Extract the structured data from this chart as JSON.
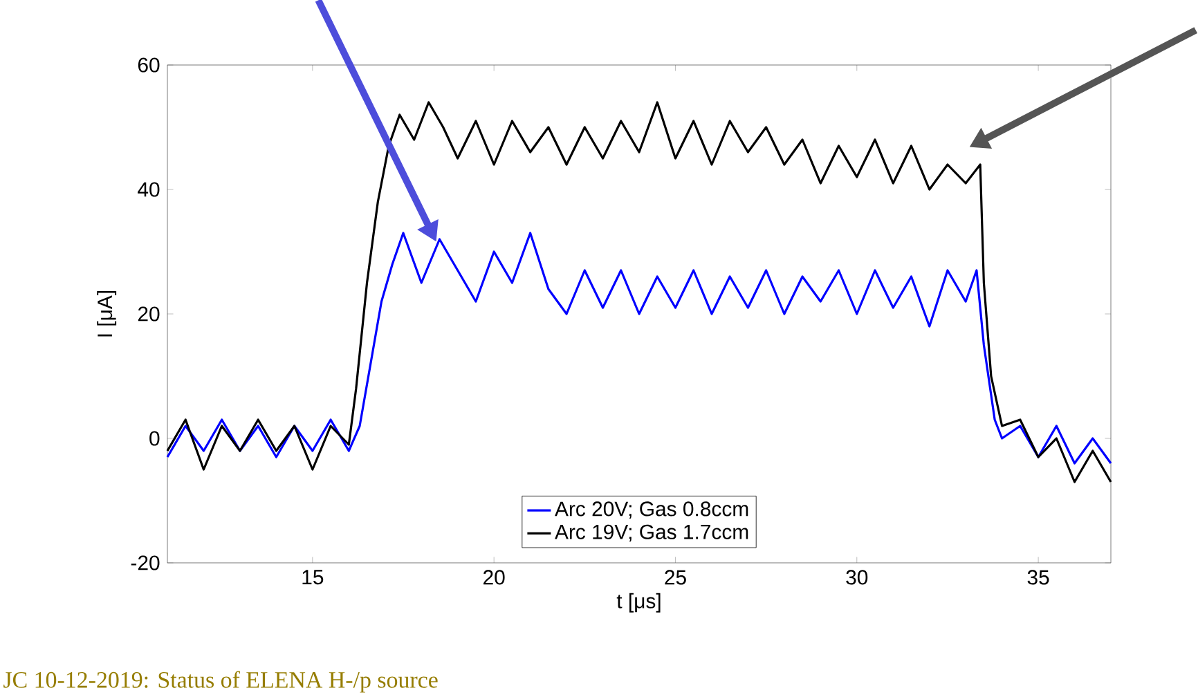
{
  "chart_data": {
    "type": "line",
    "xlabel": "t [μs]",
    "ylabel": "I [μA]",
    "xlim": [
      11,
      37
    ],
    "xticks": [
      15,
      20,
      25,
      30,
      35
    ],
    "ylim": [
      -20,
      60
    ],
    "yticks": [
      -20,
      0,
      20,
      40,
      60
    ],
    "legend": "bottom",
    "grid": false,
    "marker": "none",
    "line_style": "solid",
    "annotations": [
      "JC 10-12-2019:   Status of  ELENA H-/p source"
    ],
    "series": [
      {
        "name": "Arc 20V; Gas 0.8ccm",
        "color": "#0000ff",
        "x": [
          11,
          11.5,
          12,
          12.5,
          13,
          13.5,
          14,
          14.5,
          15,
          15.5,
          16,
          16.3,
          16.6,
          16.9,
          17.2,
          17.5,
          18,
          18.5,
          19,
          19.5,
          20,
          20.5,
          21,
          21.5,
          22,
          22.5,
          23,
          23.5,
          24,
          24.5,
          25,
          25.5,
          26,
          26.5,
          27,
          27.5,
          28,
          28.5,
          29,
          29.5,
          30,
          30.5,
          31,
          31.5,
          32,
          32.5,
          33,
          33.3,
          33.5,
          33.8,
          34,
          34.5,
          35,
          35.5,
          36,
          36.5,
          37
        ],
        "values": [
          -3,
          2,
          -2,
          3,
          -2,
          2,
          -3,
          2,
          -2,
          3,
          -2,
          2,
          12,
          22,
          28,
          33,
          25,
          32,
          27,
          22,
          30,
          25,
          33,
          24,
          20,
          27,
          21,
          27,
          20,
          26,
          21,
          27,
          20,
          26,
          21,
          27,
          20,
          26,
          22,
          27,
          20,
          27,
          21,
          26,
          18,
          27,
          22,
          27,
          15,
          3,
          0,
          2,
          -3,
          2,
          -4,
          0,
          -4
        ]
      },
      {
        "name": "Arc 19V; Gas 1.7ccm",
        "color": "#000000",
        "x": [
          11,
          11.5,
          12,
          12.5,
          13,
          13.5,
          14,
          14.5,
          15,
          15.5,
          16,
          16.2,
          16.5,
          16.8,
          17.1,
          17.4,
          17.8,
          18.2,
          18.6,
          19,
          19.5,
          20,
          20.5,
          21,
          21.5,
          22,
          22.5,
          23,
          23.5,
          24,
          24.5,
          25,
          25.5,
          26,
          26.5,
          27,
          27.5,
          28,
          28.5,
          29,
          29.5,
          30,
          30.5,
          31,
          31.5,
          32,
          32.5,
          33,
          33.4,
          33.5,
          33.7,
          34,
          34.5,
          35,
          35.5,
          36,
          36.5,
          37
        ],
        "values": [
          -2,
          3,
          -5,
          2,
          -2,
          3,
          -2,
          2,
          -5,
          2,
          -1,
          8,
          25,
          38,
          47,
          52,
          48,
          54,
          50,
          45,
          51,
          44,
          51,
          46,
          50,
          44,
          50,
          45,
          51,
          46,
          54,
          45,
          51,
          44,
          51,
          46,
          50,
          44,
          48,
          41,
          47,
          42,
          48,
          41,
          47,
          40,
          44,
          41,
          44,
          25,
          10,
          2,
          3,
          -3,
          0,
          -7,
          -2,
          -7
        ]
      }
    ]
  }
}
